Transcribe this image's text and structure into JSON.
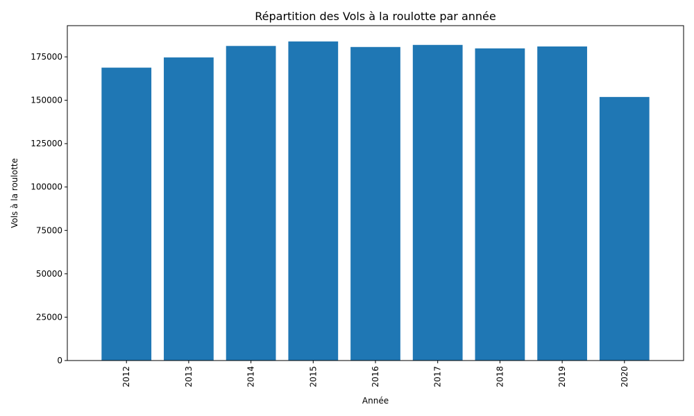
{
  "chart_data": {
    "type": "bar",
    "title": "Répartition des Vols à la roulotte par année",
    "xlabel": "Année",
    "ylabel": "Vols à la roulotte",
    "categories": [
      "2012",
      "2013",
      "2014",
      "2015",
      "2016",
      "2017",
      "2018",
      "2019",
      "2020"
    ],
    "values": [
      168800,
      174700,
      181300,
      183900,
      180700,
      181900,
      179900,
      181000,
      151900
    ],
    "ylim": [
      0,
      193000
    ],
    "yticks": [
      0,
      25000,
      50000,
      75000,
      100000,
      125000,
      150000,
      175000
    ],
    "bar_color": "#1f77b4",
    "grid": false,
    "xtick_rotation": "vertical"
  }
}
